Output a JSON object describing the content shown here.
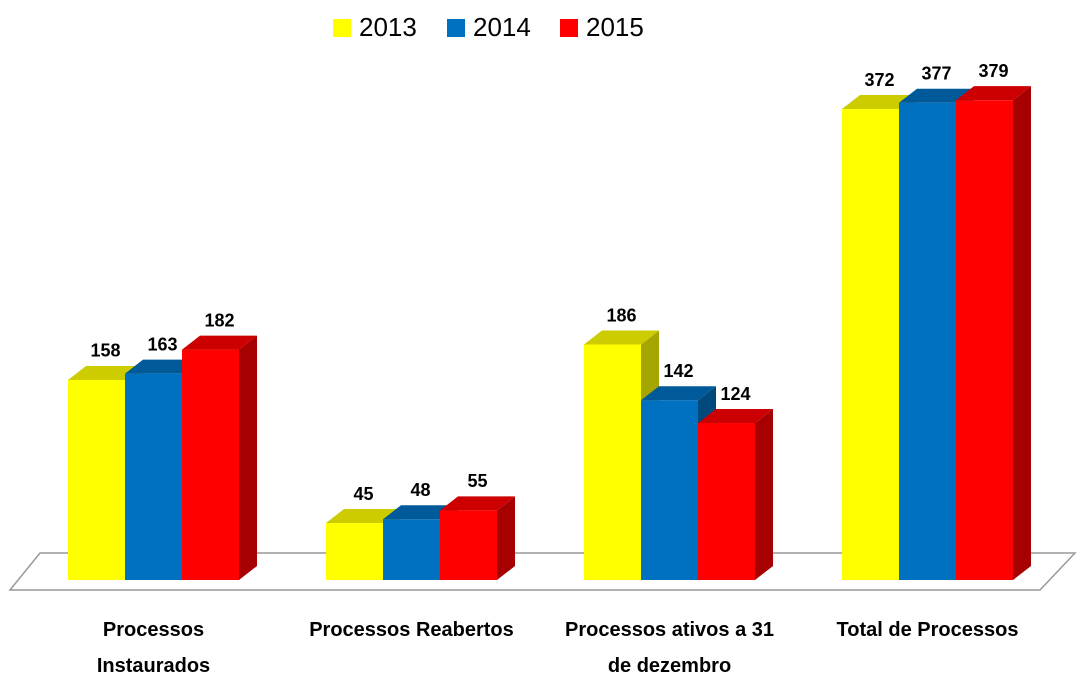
{
  "chart_data": {
    "type": "bar3d",
    "categories": [
      "Processos Instaurados",
      "Processos Reabertos",
      "Processos ativos a 31 de dezembro",
      "Total de Processos"
    ],
    "series": [
      {
        "name": "2013",
        "color": "#ffff00",
        "values": [
          158,
          45,
          186,
          372
        ]
      },
      {
        "name": "2014",
        "color": "#0070c0",
        "values": [
          163,
          48,
          142,
          377
        ]
      },
      {
        "name": "2015",
        "color": "#ff0000",
        "values": [
          182,
          55,
          124,
          379
        ]
      }
    ],
    "legend": "top"
  }
}
